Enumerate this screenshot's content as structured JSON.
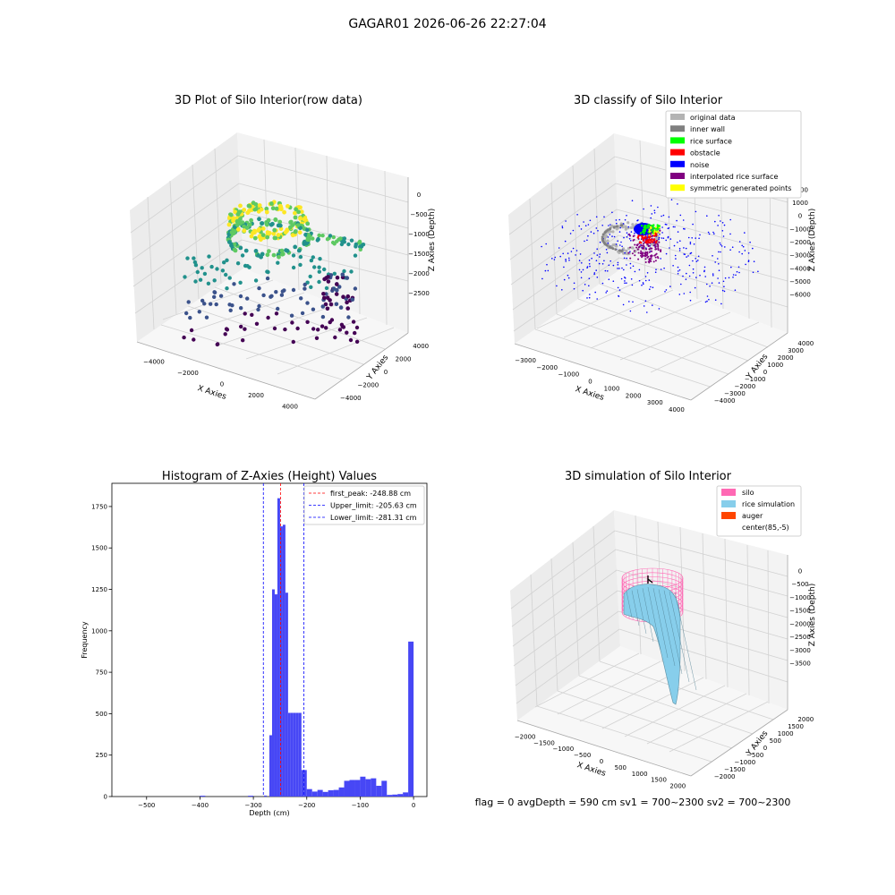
{
  "figure": {
    "suptitle": "GAGAR01 2026-06-26 22:27:04",
    "status_text": "flag = 0     avgDepth = 590 cm  sv1 = 700~2300  sv2 = 700~2300"
  },
  "chart_data": [
    {
      "type": "scatter",
      "title": "3D Plot of Silo Interior(row data)",
      "xlabel": "X Axies",
      "ylabel": "Y Axies",
      "zlabel": "Z Axies (Depth)",
      "x_ticks": [
        -4000,
        -2000,
        0,
        2000,
        4000
      ],
      "y_ticks": [
        -4000,
        -2000,
        0,
        2000,
        4000
      ],
      "z_ticks": [
        0,
        -500,
        -1000,
        -1500,
        -2000,
        -2500
      ],
      "colormap": [
        "#440154",
        "#3b528b",
        "#21918c",
        "#5ec962",
        "#fde725"
      ]
    },
    {
      "type": "scatter",
      "title": "3D classify of Silo Interior",
      "xlabel": "X Axies",
      "ylabel": "Y Axies",
      "zlabel": "Z Axies (Depth)",
      "x_ticks": [
        -3000,
        -2000,
        -1000,
        0,
        1000,
        2000,
        3000,
        4000
      ],
      "y_ticks": [
        -4000,
        -3000,
        -2000,
        -1000,
        0,
        1000,
        2000,
        3000,
        4000
      ],
      "z_ticks": [
        2000,
        1000,
        0,
        -1000,
        -2000,
        -3000,
        -4000,
        -5000,
        -6000
      ],
      "legend": [
        {
          "label": "original data",
          "color": "#b3b3b3"
        },
        {
          "label": "inner wall",
          "color": "#808080"
        },
        {
          "label": "rice surface",
          "color": "#00ff00"
        },
        {
          "label": "obstacle",
          "color": "#ff0000"
        },
        {
          "label": "noise",
          "color": "#0000ff"
        },
        {
          "label": "interpolated rice surface",
          "color": "#800080"
        },
        {
          "label": "symmetric generated points",
          "color": "#ffff00"
        }
      ]
    },
    {
      "type": "bar",
      "title": "Histogram of Z-Axies (Height) Values",
      "xlabel": "Depth (cm)",
      "ylabel": "Frequency",
      "xlim": [
        -565,
        25
      ],
      "ylim": [
        0,
        1890
      ],
      "x_ticks": [
        -500,
        -400,
        -300,
        -200,
        -100,
        0
      ],
      "y_ticks": [
        0,
        250,
        500,
        750,
        1000,
        1250,
        1500,
        1750
      ],
      "bar_color": "#4747f5",
      "bins": [
        {
          "x0": -400,
          "x1": -390,
          "count": 5
        },
        {
          "x0": -310,
          "x1": -300,
          "count": 5
        },
        {
          "x0": -280,
          "x1": -275,
          "count": 6
        },
        {
          "x0": -270,
          "x1": -265,
          "count": 370
        },
        {
          "x0": -265,
          "x1": -260,
          "count": 1250
        },
        {
          "x0": -260,
          "x1": -255,
          "count": 1220
        },
        {
          "x0": -255,
          "x1": -250,
          "count": 1800
        },
        {
          "x0": -250,
          "x1": -245,
          "count": 1630
        },
        {
          "x0": -245,
          "x1": -240,
          "count": 1640
        },
        {
          "x0": -240,
          "x1": -235,
          "count": 1230
        },
        {
          "x0": -235,
          "x1": -230,
          "count": 505
        },
        {
          "x0": -230,
          "x1": -225,
          "count": 505
        },
        {
          "x0": -225,
          "x1": -220,
          "count": 505
        },
        {
          "x0": -220,
          "x1": -215,
          "count": 505
        },
        {
          "x0": -215,
          "x1": -210,
          "count": 505
        },
        {
          "x0": -210,
          "x1": -205,
          "count": 160
        },
        {
          "x0": -205,
          "x1": -200,
          "count": 160
        },
        {
          "x0": -200,
          "x1": -190,
          "count": 45
        },
        {
          "x0": -190,
          "x1": -180,
          "count": 30
        },
        {
          "x0": -180,
          "x1": -170,
          "count": 40
        },
        {
          "x0": -170,
          "x1": -160,
          "count": 28
        },
        {
          "x0": -160,
          "x1": -150,
          "count": 38
        },
        {
          "x0": -150,
          "x1": -140,
          "count": 40
        },
        {
          "x0": -140,
          "x1": -130,
          "count": 55
        },
        {
          "x0": -130,
          "x1": -120,
          "count": 95
        },
        {
          "x0": -120,
          "x1": -110,
          "count": 100
        },
        {
          "x0": -110,
          "x1": -100,
          "count": 100
        },
        {
          "x0": -100,
          "x1": -90,
          "count": 120
        },
        {
          "x0": -90,
          "x1": -80,
          "count": 105
        },
        {
          "x0": -80,
          "x1": -70,
          "count": 110
        },
        {
          "x0": -70,
          "x1": -60,
          "count": 65
        },
        {
          "x0": -60,
          "x1": -50,
          "count": 95
        },
        {
          "x0": -50,
          "x1": -40,
          "count": 10
        },
        {
          "x0": -40,
          "x1": -30,
          "count": 12
        },
        {
          "x0": -30,
          "x1": -20,
          "count": 15
        },
        {
          "x0": -20,
          "x1": -10,
          "count": 25
        },
        {
          "x0": -10,
          "x1": 0,
          "count": 935
        }
      ],
      "vlines": [
        {
          "label": "first_peak: -248.88 cm",
          "value": -248.88,
          "color": "#ff0000"
        },
        {
          "label": "Upper_limit: -205.63 cm",
          "value": -205.63,
          "color": "#0000ff"
        },
        {
          "label": "Lower_limit: -281.31 cm",
          "value": -281.31,
          "color": "#0000ff"
        }
      ]
    },
    {
      "type": "area",
      "title": "3D simulation of Silo Interior",
      "xlabel": "X Axies",
      "ylabel": "Y Axies",
      "zlabel": "Z Axies (Depth)",
      "x_ticks": [
        -2000,
        -1500,
        -1000,
        -500,
        0,
        500,
        1000,
        1500,
        2000
      ],
      "y_ticks": [
        -2000,
        -1500,
        -1000,
        -500,
        0,
        500,
        1000,
        1500,
        2000
      ],
      "z_ticks": [
        0,
        -500,
        -1000,
        -1500,
        -2000,
        -2500,
        -3000,
        -3500
      ],
      "legend": [
        {
          "label": "silo",
          "color": "#ff69b4"
        },
        {
          "label": "rice simulation",
          "color": "#87ceeb"
        },
        {
          "label": "auger",
          "color": "#ff4500"
        },
        {
          "label": "center(85,-5)",
          "color": ""
        }
      ]
    }
  ]
}
